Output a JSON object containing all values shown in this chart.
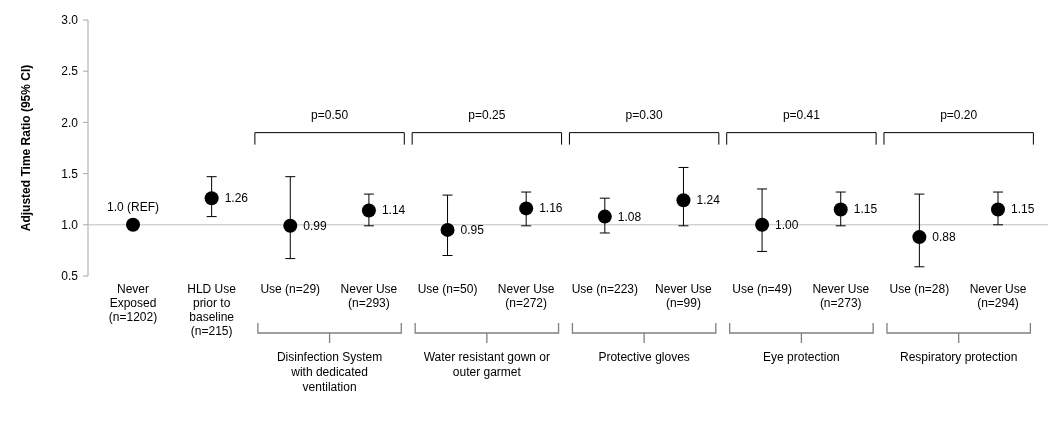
{
  "chart_data": {
    "type": "scatter",
    "ylabel": "Adjusted Time Ratio (95% CI)",
    "categories": [
      "Never Exposed (n=1202)",
      "HLD Use prior to baseline (n=215)",
      "Use (n=29)",
      "Never Use (n=293)",
      "Use (n=50)",
      "Never Use (n=272)",
      "Use (n=223)",
      "Never Use (n=99)",
      "Use (n=49)",
      "Never Use (n=273)",
      "Use (n=28)",
      "Never Use (n=294)"
    ],
    "series": [
      {
        "color": "#000000",
        "values": [
          1.0,
          1.26,
          0.99,
          1.14,
          0.95,
          1.16,
          1.08,
          1.24,
          1.0,
          1.15,
          0.88,
          1.15
        ],
        "errors": [
          null,
          [
            1.08,
            1.47
          ],
          [
            0.67,
            1.47
          ],
          [
            0.99,
            1.3
          ],
          [
            0.7,
            1.29
          ],
          [
            0.99,
            1.32
          ],
          [
            0.92,
            1.26
          ],
          [
            0.99,
            1.56
          ],
          [
            0.74,
            1.35
          ],
          [
            0.99,
            1.32
          ],
          [
            0.59,
            1.3
          ],
          [
            1.0,
            1.32
          ]
        ],
        "value_labels": [
          "1.0 (REF)",
          "1.26",
          "0.99",
          "1.14",
          "0.95",
          "1.16",
          "1.08",
          "1.24",
          "1.00",
          "1.15",
          "0.88",
          "1.15"
        ]
      }
    ],
    "ylim": [
      0.5,
      3.0
    ],
    "yticks": [
      0.5,
      {
        "value": 1,
        "label": "1.0"
      },
      1.5,
      {
        "value": 2,
        "label": "2.0"
      },
      2.5,
      {
        "value": 3,
        "label": "3.0"
      }
    ],
    "grid": false,
    "marker": "circle",
    "ref_lines": [
      {
        "axis": "y",
        "value": 1.0,
        "color": "#bfbfbf"
      }
    ],
    "annotations": [
      "p=0.50",
      "p=0.25",
      "p=0.30",
      "p=0.41",
      "p=0.20",
      "Disinfection System with dedicated ventilation",
      "Water resistant gown or outer garmet",
      "Protective gloves",
      "Eye protection",
      "Respiratory protection"
    ]
  }
}
